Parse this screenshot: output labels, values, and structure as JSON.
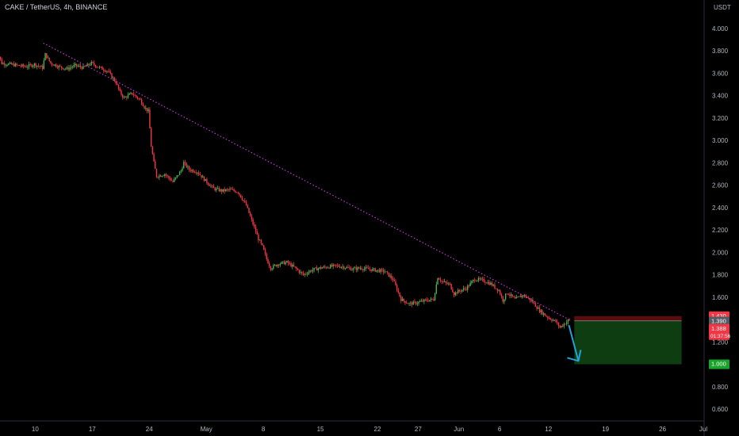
{
  "header": {
    "symbol_title": "CAKE / TetherUS, 4h, BINANCE"
  },
  "price_scale": {
    "currency": "USDT"
  },
  "colors": {
    "up": "#26a69a",
    "down": "#ef5350",
    "candle_up": "#4caf50",
    "candle_down": "#f23645",
    "trendline": "#c039d6",
    "arrow": "#22a3d8",
    "stop_zone": "#5a0d0d",
    "target_zone": "#0f3d12",
    "target_badge": "#1aa32b",
    "price_badge": "#f23645",
    "grey_badge": "#565a62",
    "axis_text": "#b2b5be",
    "background": "#000000"
  },
  "chart_data": {
    "type": "candlestick",
    "title": "CAKE / TetherUS, 4h, BINANCE",
    "y_unit": "USDT",
    "ylim": [
      0.55,
      4.1
    ],
    "y_ticks": [
      "4.000",
      "3.800",
      "3.600",
      "3.400",
      "3.200",
      "3.000",
      "2.800",
      "2.600",
      "2.400",
      "2.200",
      "2.000",
      "1.800",
      "1.600",
      "1.400",
      "1.200",
      "1.000",
      "0.800",
      "0.600"
    ],
    "x_range": [
      "2022-04-05",
      "2022-07-01"
    ],
    "x_ticks": [
      {
        "date": "2022-04-10",
        "label": "10"
      },
      {
        "date": "2022-04-17",
        "label": "17"
      },
      {
        "date": "2022-04-24",
        "label": "24"
      },
      {
        "date": "2022-05-01",
        "label": "May"
      },
      {
        "date": "2022-05-08",
        "label": "8"
      },
      {
        "date": "2022-05-15",
        "label": "15"
      },
      {
        "date": "2022-05-22",
        "label": "22"
      },
      {
        "date": "2022-05-27",
        "label": "27"
      },
      {
        "date": "2022-06-01",
        "label": "Jun"
      },
      {
        "date": "2022-06-06",
        "label": "6"
      },
      {
        "date": "2022-06-12",
        "label": "12"
      },
      {
        "date": "2022-06-19",
        "label": "19"
      },
      {
        "date": "2022-06-26",
        "label": "26"
      },
      {
        "date": "2022-07-01",
        "label": "Jul"
      }
    ],
    "price_path": [
      [
        "2022-04-05T00:00",
        3.66
      ],
      [
        "2022-04-05T08:00",
        3.72
      ],
      [
        "2022-04-05T12:00",
        3.78
      ],
      [
        "2022-04-06T00:00",
        3.69
      ],
      [
        "2022-04-07T00:00",
        3.68
      ],
      [
        "2022-04-08T00:00",
        3.67
      ],
      [
        "2022-04-09T00:00",
        3.66
      ],
      [
        "2022-04-10T00:00",
        3.68
      ],
      [
        "2022-04-11T00:00",
        3.65
      ],
      [
        "2022-04-11T08:00",
        3.77
      ],
      [
        "2022-04-12T00:00",
        3.69
      ],
      [
        "2022-04-13T00:00",
        3.66
      ],
      [
        "2022-04-14T00:00",
        3.64
      ],
      [
        "2022-04-15T00:00",
        3.67
      ],
      [
        "2022-04-16T00:00",
        3.65
      ],
      [
        "2022-04-17T00:00",
        3.69
      ],
      [
        "2022-04-18T00:00",
        3.65
      ],
      [
        "2022-04-19T00:00",
        3.62
      ],
      [
        "2022-04-20T00:00",
        3.52
      ],
      [
        "2022-04-20T12:00",
        3.43
      ],
      [
        "2022-04-21T00:00",
        3.38
      ],
      [
        "2022-04-22T00:00",
        3.42
      ],
      [
        "2022-04-23T00:00",
        3.36
      ],
      [
        "2022-04-23T12:00",
        3.3
      ],
      [
        "2022-04-24T00:00",
        3.26
      ],
      [
        "2022-04-24T08:00",
        2.95
      ],
      [
        "2022-04-24T16:00",
        2.8
      ],
      [
        "2022-04-25T00:00",
        2.68
      ],
      [
        "2022-04-26T00:00",
        2.7
      ],
      [
        "2022-04-27T00:00",
        2.63
      ],
      [
        "2022-04-28T00:00",
        2.73
      ],
      [
        "2022-04-28T08:00",
        2.8
      ],
      [
        "2022-04-29T00:00",
        2.74
      ],
      [
        "2022-04-30T00:00",
        2.72
      ],
      [
        "2022-05-01T00:00",
        2.64
      ],
      [
        "2022-05-02T00:00",
        2.57
      ],
      [
        "2022-05-03T00:00",
        2.55
      ],
      [
        "2022-05-04T00:00",
        2.56
      ],
      [
        "2022-05-05T00:00",
        2.54
      ],
      [
        "2022-05-06T00:00",
        2.42
      ],
      [
        "2022-05-07T00:00",
        2.22
      ],
      [
        "2022-05-07T12:00",
        2.12
      ],
      [
        "2022-05-08T00:00",
        2.05
      ],
      [
        "2022-05-08T12:00",
        1.94
      ],
      [
        "2022-05-09T00:00",
        1.86
      ],
      [
        "2022-05-10T00:00",
        1.9
      ],
      [
        "2022-05-11T00:00",
        1.91
      ],
      [
        "2022-05-12T00:00",
        1.86
      ],
      [
        "2022-05-13T00:00",
        1.8
      ],
      [
        "2022-05-14T00:00",
        1.84
      ],
      [
        "2022-05-15T00:00",
        1.86
      ],
      [
        "2022-05-16T00:00",
        1.87
      ],
      [
        "2022-05-17T00:00",
        1.88
      ],
      [
        "2022-05-18T00:00",
        1.87
      ],
      [
        "2022-05-19T00:00",
        1.85
      ],
      [
        "2022-05-20T00:00",
        1.86
      ],
      [
        "2022-05-21T00:00",
        1.85
      ],
      [
        "2022-05-22T00:00",
        1.84
      ],
      [
        "2022-05-23T00:00",
        1.83
      ],
      [
        "2022-05-24T00:00",
        1.76
      ],
      [
        "2022-05-25T00:00",
        1.58
      ],
      [
        "2022-05-26T00:00",
        1.54
      ],
      [
        "2022-05-27T00:00",
        1.55
      ],
      [
        "2022-05-28T00:00",
        1.57
      ],
      [
        "2022-05-29T00:00",
        1.58
      ],
      [
        "2022-05-29T12:00",
        1.78
      ],
      [
        "2022-05-30T00:00",
        1.74
      ],
      [
        "2022-05-31T00:00",
        1.71
      ],
      [
        "2022-05-31T12:00",
        1.63
      ],
      [
        "2022-06-01T00:00",
        1.65
      ],
      [
        "2022-06-02T00:00",
        1.68
      ],
      [
        "2022-06-03T00:00",
        1.76
      ],
      [
        "2022-06-04T00:00",
        1.75
      ],
      [
        "2022-06-05T00:00",
        1.72
      ],
      [
        "2022-06-06T00:00",
        1.66
      ],
      [
        "2022-06-06T12:00",
        1.57
      ],
      [
        "2022-06-07T00:00",
        1.64
      ],
      [
        "2022-06-08T00:00",
        1.58
      ],
      [
        "2022-06-09T00:00",
        1.62
      ],
      [
        "2022-06-10T00:00",
        1.57
      ],
      [
        "2022-06-11T00:00",
        1.48
      ],
      [
        "2022-06-12T00:00",
        1.42
      ],
      [
        "2022-06-13T00:00",
        1.38
      ],
      [
        "2022-06-13T12:00",
        1.33
      ],
      [
        "2022-06-14T00:00",
        1.36
      ],
      [
        "2022-06-14T12:00",
        1.39
      ]
    ],
    "trendline": {
      "from": [
        "2022-04-11T00:00",
        3.87
      ],
      "to": [
        "2022-06-14T12:00",
        1.4
      ]
    },
    "short_position": {
      "x_from": "2022-06-15T04:00",
      "x_to": "2022-06-28T08:00",
      "entry": 1.388,
      "stop": 1.43,
      "target": 1.0
    },
    "arrow": {
      "from": [
        "2022-06-14T12:00",
        1.35
      ],
      "to": [
        "2022-06-15T16:00",
        1.03
      ]
    },
    "price_labels": [
      {
        "price": 1.43,
        "text": "1.430",
        "kind": "stop"
      },
      {
        "price": 1.39,
        "text": "1.390",
        "kind": "grey"
      },
      {
        "price": 1.388,
        "text": "1.388",
        "kind": "last",
        "countdown": "01:37:56"
      },
      {
        "price": 1.0,
        "text": "1.000",
        "kind": "target"
      }
    ]
  }
}
